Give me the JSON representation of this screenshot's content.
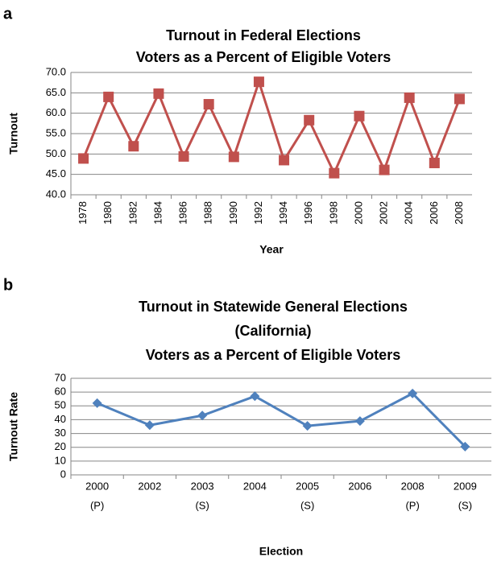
{
  "chart_data": [
    {
      "type": "line",
      "panel": "a",
      "title": [
        "Turnout in Federal Elections",
        "Voters as a Percent of Eligible Voters"
      ],
      "x_label": "Year",
      "y_label": "Turnout",
      "categories": [
        [
          "1978"
        ],
        [
          "1980"
        ],
        [
          "1982"
        ],
        [
          "1984"
        ],
        [
          "1986"
        ],
        [
          "1988"
        ],
        [
          "1990"
        ],
        [
          "1992"
        ],
        [
          "1994"
        ],
        [
          "1996"
        ],
        [
          "1998"
        ],
        [
          "2000"
        ],
        [
          "2002"
        ],
        [
          "2004"
        ],
        [
          "2006"
        ],
        [
          "2008"
        ]
      ],
      "series": [
        {
          "name": "Turnout",
          "color": "#c0504d",
          "marker": "square",
          "values": [
            48.9,
            64.0,
            51.9,
            64.8,
            49.4,
            62.2,
            49.3,
            67.7,
            48.5,
            58.3,
            45.3,
            59.3,
            46.1,
            63.8,
            47.8,
            63.5
          ]
        }
      ],
      "ylim": [
        40,
        70
      ],
      "yticks": [
        {
          "value": 40,
          "label": "40.0"
        },
        {
          "value": 45,
          "label": "45.0"
        },
        {
          "value": 50,
          "label": "50.0"
        },
        {
          "value": 55,
          "label": "55.0"
        },
        {
          "value": 60,
          "label": "60.0"
        },
        {
          "value": 65,
          "label": "65.0"
        },
        {
          "value": 70,
          "label": "70.0"
        }
      ],
      "grid": true,
      "rotate_x_labels": true
    },
    {
      "type": "line",
      "panel": "b",
      "title": [
        "Turnout in Statewide General Elections",
        "(California)",
        "Voters as a Percent of Eligible Voters"
      ],
      "x_label": "Election",
      "y_label": "Turnout Rate",
      "categories": [
        [
          "2000",
          "(P)"
        ],
        [
          "2002"
        ],
        [
          "2003",
          "(S)"
        ],
        [
          "2004"
        ],
        [
          "2005",
          "(S)"
        ],
        [
          "2006"
        ],
        [
          "2008",
          "(P)"
        ],
        [
          "2009",
          "(S)"
        ]
      ],
      "series": [
        {
          "name": "Turnout Rate",
          "color": "#4f81bd",
          "marker": "diamond",
          "values": [
            52,
            36,
            43,
            57,
            35.5,
            39,
            59,
            20.5
          ]
        }
      ],
      "ylim": [
        0,
        70
      ],
      "yticks": [
        0,
        10,
        20,
        30,
        40,
        50,
        60,
        70
      ],
      "grid": true,
      "rotate_x_labels": false
    }
  ]
}
